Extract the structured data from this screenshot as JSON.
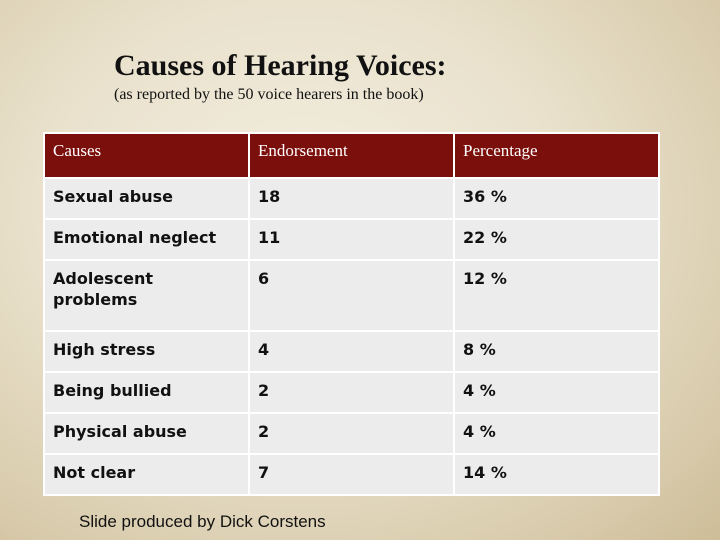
{
  "slide": {
    "title": "Causes of Hearing Voices:",
    "subtitle": "(as reported by the 50 voice hearers in the book)",
    "credit": "Slide produced by Dick Corstens"
  },
  "table": {
    "headers": [
      "Causes",
      "Endorsement",
      "Percentage"
    ],
    "rows": [
      [
        "Sexual abuse",
        "18",
        "36 %"
      ],
      [
        "Emotional neglect",
        "11",
        "22 %"
      ],
      [
        "Adolescent problems",
        "6",
        "12 %"
      ],
      [
        "High stress",
        "4",
        "8 %"
      ],
      [
        "Being bullied",
        "2",
        "4 %"
      ],
      [
        "Physical abuse",
        "2",
        "4 %"
      ],
      [
        "Not clear",
        "7",
        "14 %"
      ]
    ]
  }
}
